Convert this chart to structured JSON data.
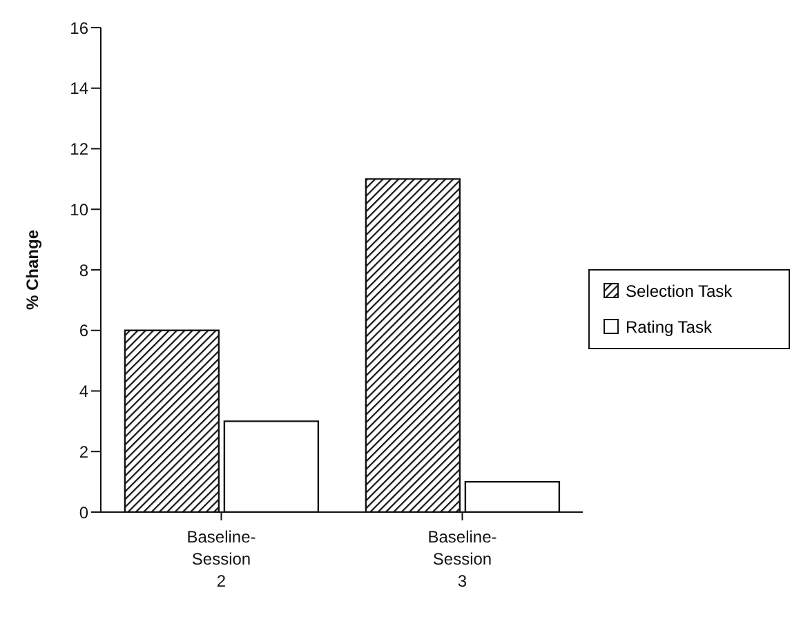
{
  "chart_data": {
    "type": "bar",
    "ylabel": "% Change",
    "categories": [
      "Baseline-Session 2",
      "Baseline-Session 3"
    ],
    "series": [
      {
        "name": "Selection Task",
        "color": "#111111",
        "values": [
          6,
          11
        ]
      },
      {
        "name": "Rating Task",
        "color": "#ffffff",
        "values": [
          3,
          1
        ]
      }
    ],
    "ylim": [
      0,
      16
    ],
    "yticks": [
      0,
      2,
      4,
      6,
      8,
      10,
      12,
      14,
      16
    ],
    "grid": false,
    "legend": "right"
  }
}
